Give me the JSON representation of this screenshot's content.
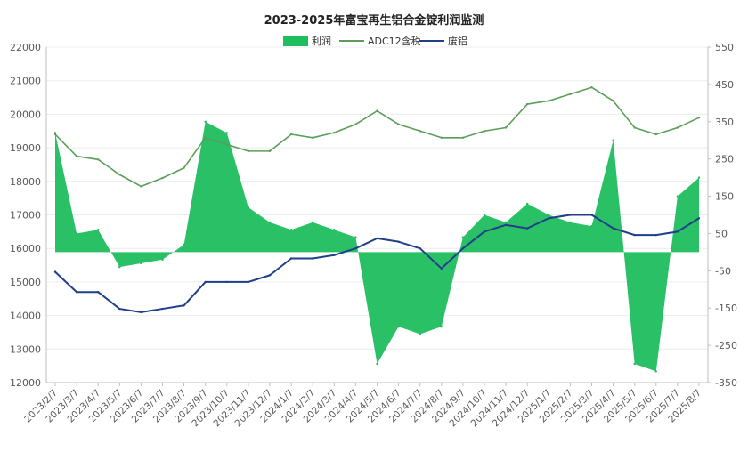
{
  "chart_data": {
    "type": "line",
    "title": "2023-2025年富宝再生铝合金锭利润监测",
    "legend": {
      "placement": "top-center",
      "items": [
        {
          "name": "利润",
          "color": "#1ebd5e",
          "kind": "area"
        },
        {
          "name": "ADC12含税",
          "color": "#5a9e5a",
          "kind": "line"
        },
        {
          "name": "废铝",
          "color": "#1f3f88",
          "kind": "line"
        }
      ]
    },
    "y_left": {
      "min": 12000,
      "max": 22000,
      "ticks": [
        "22000",
        "21000",
        "20000",
        "19000",
        "18000",
        "17000",
        "16000",
        "15000",
        "14000",
        "13000",
        "12000"
      ]
    },
    "y_right": {
      "min": -350,
      "max": 550,
      "ticks": [
        "550",
        "450",
        "350",
        "250",
        "150",
        "50",
        "-50",
        "-150",
        "-250",
        "-350"
      ]
    },
    "x_labels": [
      "2023/2/7",
      "2023/3/7",
      "2023/4/7",
      "2023/5/7",
      "2023/6/7",
      "2023/7/7",
      "2023/8/7",
      "2023/9/7",
      "2023/10/7",
      "2023/11/7",
      "2023/12/7",
      "2024/1/7",
      "2024/2/7",
      "2024/3/7",
      "2024/4/7",
      "2024/5/7",
      "2024/6/7",
      "2024/7/7",
      "2024/8/7",
      "2024/9/7",
      "2024/10/7",
      "2024/11/7",
      "2024/12/7",
      "2025/1/7",
      "2025/2/7",
      "2025/3/7",
      "2025/4/7",
      "2025/5/7",
      "2025/6/7",
      "2025/7/7",
      "2025/8/7"
    ],
    "series": [
      {
        "name": "ADC12含税",
        "axis": "left",
        "values": [
          19400,
          18750,
          18650,
          18200,
          17850,
          18100,
          18400,
          19300,
          19100,
          18900,
          18900,
          19400,
          19300,
          19450,
          19700,
          20100,
          19700,
          19500,
          19300,
          19300,
          19500,
          19600,
          20300,
          20400,
          20600,
          20800,
          20400,
          19600,
          19400,
          19600,
          19900
        ]
      },
      {
        "name": "废铝",
        "axis": "left",
        "values": [
          15300,
          14700,
          14700,
          14200,
          14100,
          14200,
          14300,
          15000,
          15000,
          15000,
          15200,
          15700,
          15700,
          15800,
          16000,
          16300,
          16200,
          16000,
          15400,
          16000,
          16500,
          16700,
          16600,
          16900,
          17000,
          17000,
          16600,
          16400,
          16400,
          16500,
          16900
        ]
      },
      {
        "name": "利润",
        "axis": "right",
        "values": [
          320,
          50,
          60,
          -40,
          -30,
          -20,
          20,
          350,
          320,
          120,
          80,
          60,
          80,
          60,
          40,
          -300,
          -200,
          -220,
          -200,
          40,
          100,
          80,
          130,
          100,
          80,
          70,
          300,
          -300,
          -320,
          150,
          200
        ]
      }
    ]
  }
}
